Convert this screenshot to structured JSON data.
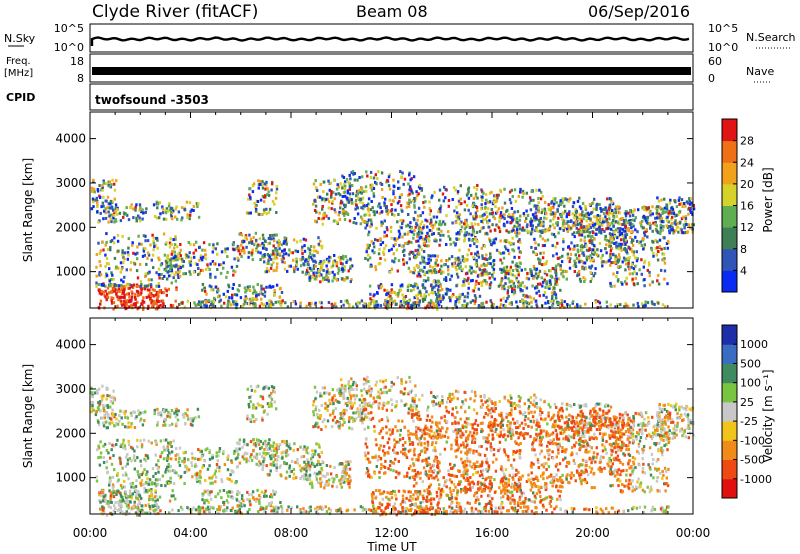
{
  "header": {
    "station": "Clyde River (fitACF)",
    "beam": "Beam 08",
    "date": "06/Sep/2016"
  },
  "noise_panel": {
    "label": "N.Sky",
    "right_label": "N.Search",
    "left_ticks": [
      "10^5",
      "10^0"
    ],
    "right_ticks": [
      "10^5",
      "10^0"
    ]
  },
  "freq_panel": {
    "label_top": "Freq.",
    "label_bottom": "[MHz]",
    "right_label": "Nave",
    "left_ticks": [
      "18",
      "8"
    ],
    "right_ticks": [
      "60",
      "0"
    ]
  },
  "cpid_panel": {
    "label": "CPID",
    "value": "twofsound -3503"
  },
  "chart_data": [
    {
      "type": "heatmap",
      "title": "",
      "ylabel": "Slant Range [km]",
      "x_ticks": [
        "00:00",
        "04:00",
        "08:00",
        "12:00",
        "16:00",
        "20:00",
        "00:00"
      ],
      "y_ticks": [
        "1000",
        "2000",
        "3000",
        "4000"
      ],
      "ylim": [
        180,
        4600
      ],
      "xlim_hours": [
        0,
        24
      ],
      "colorbar": {
        "label": "Power [dB]",
        "ticks": [
          "4",
          "8",
          "12",
          "16",
          "20",
          "24",
          "28"
        ],
        "colors": [
          "#0a2cf2",
          "#2f55b8",
          "#3e7f55",
          "#5fae52",
          "#d6d22a",
          "#f0a21c",
          "#f07018",
          "#e01414"
        ]
      }
    },
    {
      "type": "heatmap",
      "title": "",
      "ylabel": "Slant Range [km]",
      "x_ticks": [
        "00:00",
        "04:00",
        "08:00",
        "12:00",
        "16:00",
        "20:00",
        "00:00"
      ],
      "y_ticks": [
        "1000",
        "2000",
        "3000",
        "4000"
      ],
      "ylim": [
        180,
        4600
      ],
      "xlim_hours": [
        0,
        24
      ],
      "xlabel": "Time UT",
      "colorbar": {
        "label": "Velocity [m s⁻¹]",
        "ticks": [
          "1000",
          "500",
          "100",
          "25",
          "-25",
          "-100",
          "-500",
          "-1000"
        ],
        "colors": [
          "#1c2ea8",
          "#3a6cc4",
          "#3f8a5e",
          "#79c441",
          "#c8c8c8",
          "#f0c418",
          "#f08a18",
          "#f04a14",
          "#e01010"
        ]
      }
    }
  ]
}
